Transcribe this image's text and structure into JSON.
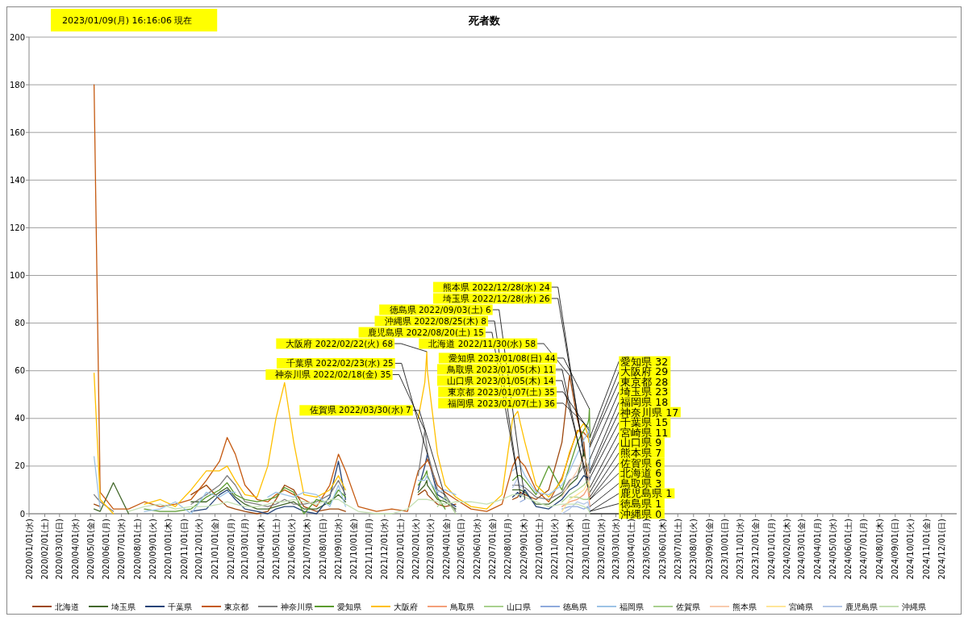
{
  "chart_data": {
    "type": "line",
    "title": "死者数",
    "annotations": [
      "2023/01/09(月) 16:16:06 現在",
      {
        "text": "大阪府 2022/02/22(火) 68",
        "x": "2022-02-22",
        "y": 68
      },
      {
        "text": "神奈川県 2022/02/18(金) 35",
        "x": "2022-02-18",
        "y": 35
      },
      {
        "text": "千葉県 2022/02/23(水) 25",
        "x": "2022-02-23",
        "y": 25
      },
      {
        "text": "佐賀県 2022/03/30(水) 7",
        "x": "2022-03-30",
        "y": 7
      },
      {
        "text": "鹿児島県 2022/08/20(土) 15",
        "x": "2022-08-20",
        "y": 15
      },
      {
        "text": "沖縄県 2022/08/25(木) 8",
        "x": "2022-08-25",
        "y": 8
      },
      {
        "text": "徳島県 2022/09/03(土) 6",
        "x": "2022-09-03",
        "y": 6
      },
      {
        "text": "北海道 2022/11/30(水) 58",
        "x": "2022-11-30",
        "y": 58
      },
      {
        "text": "愛知県 2023/01/08(日) 44",
        "x": "2023-01-08",
        "y": 44
      },
      {
        "text": "福岡県 2023/01/07(土) 36",
        "x": "2023-01-07",
        "y": 36
      },
      {
        "text": "東京都 2023/01/07(土) 35",
        "x": "2023-01-07",
        "y": 35
      },
      {
        "text": "埼玉県 2022/12/28(水) 26",
        "x": "2022-12-28",
        "y": 26
      },
      {
        "text": "熊本県 2022/12/28(水) 24",
        "x": "2022-12-28",
        "y": 24
      },
      {
        "text": "山口県 2023/01/05(木) 14",
        "x": "2023-01-05",
        "y": 14
      },
      {
        "text": "鳥取県 2023/01/05(木) 11",
        "x": "2023-01-05",
        "y": 11
      },
      {
        "text": "愛知県 32",
        "x": "2023-01-09",
        "y": 32
      },
      {
        "text": "大阪府 29",
        "x": "2023-01-09",
        "y": 29
      },
      {
        "text": "東京都 28",
        "x": "2023-01-09",
        "y": 28
      },
      {
        "text": "埼玉県 23",
        "x": "2023-01-09",
        "y": 23
      },
      {
        "text": "福岡県 18",
        "x": "2023-01-09",
        "y": 18
      },
      {
        "text": "神奈川県 17",
        "x": "2023-01-09",
        "y": 17
      },
      {
        "text": "千葉県 15",
        "x": "2023-01-09",
        "y": 15
      },
      {
        "text": "宮崎県 11",
        "x": "2023-01-09",
        "y": 11
      },
      {
        "text": "山口県 9",
        "x": "2023-01-09",
        "y": 9
      },
      {
        "text": "熊本県 7",
        "x": "2023-01-09",
        "y": 7
      },
      {
        "text": "佐賀県 6",
        "x": "2023-01-09",
        "y": 6
      },
      {
        "text": "北海道 6",
        "x": "2023-01-09",
        "y": 6
      },
      {
        "text": "鳥取県 3",
        "x": "2023-01-09",
        "y": 3
      },
      {
        "text": "鹿児島県 1",
        "x": "2023-01-09",
        "y": 1
      },
      {
        "text": "徳島県 1",
        "x": "2023-01-09",
        "y": 1
      },
      {
        "text": "沖縄県 0",
        "x": "2023-01-09",
        "y": 0
      }
    ],
    "x": [
      "2020-05-08",
      "2020-05-20",
      "2020-06-15",
      "2020-07-15",
      "2020-08-15",
      "2020-09-15",
      "2020-10-15",
      "2020-11-15",
      "2020-12-15",
      "2021-01-10",
      "2021-01-25",
      "2021-02-10",
      "2021-03-01",
      "2021-03-25",
      "2021-04-15",
      "2021-05-01",
      "2021-05-18",
      "2021-06-05",
      "2021-06-25",
      "2021-07-20",
      "2021-08-15",
      "2021-09-01",
      "2021-09-15",
      "2021-10-10",
      "2021-11-15",
      "2021-12-15",
      "2022-01-15",
      "2022-02-05",
      "2022-02-18",
      "2022-02-22",
      "2022-02-23",
      "2022-03-15",
      "2022-03-30",
      "2022-04-20",
      "2022-05-20",
      "2022-06-20",
      "2022-07-20",
      "2022-08-10",
      "2022-08-20",
      "2022-08-25",
      "2022-09-03",
      "2022-09-25",
      "2022-10-20",
      "2022-11-15",
      "2022-11-30",
      "2022-12-15",
      "2022-12-28",
      "2023-01-05",
      "2023-01-07",
      "2023-01-08",
      "2023-01-09"
    ],
    "series": [
      {
        "name": "北海道",
        "color": "#9e480e",
        "values": [
          4,
          3,
          null,
          null,
          null,
          null,
          null,
          8,
          12,
          6,
          3,
          2,
          1,
          0,
          1,
          6,
          12,
          10,
          3,
          1,
          2,
          2,
          1,
          null,
          null,
          null,
          null,
          8,
          10,
          9,
          8,
          4,
          3,
          4,
          null,
          null,
          null,
          6,
          7,
          9,
          8,
          6,
          10,
          30,
          58,
          40,
          30,
          12,
          10,
          8,
          6
        ]
      },
      {
        "name": "埼玉県",
        "color": "#43682b",
        "values": [
          2,
          1,
          13,
          0,
          null,
          null,
          null,
          5,
          5,
          9,
          11,
          7,
          4,
          2,
          2,
          3,
          4,
          5,
          2,
          2,
          5,
          8,
          5,
          null,
          null,
          null,
          null,
          9,
          12,
          14,
          12,
          6,
          5,
          2,
          null,
          null,
          null,
          10,
          10,
          10,
          9,
          4,
          4,
          8,
          12,
          15,
          26,
          18,
          20,
          22,
          23
        ]
      },
      {
        "name": "千葉県",
        "color": "#264478",
        "values": [
          null,
          null,
          null,
          null,
          null,
          null,
          null,
          1,
          2,
          8,
          10,
          6,
          2,
          1,
          0,
          2,
          3,
          3,
          1,
          0,
          7,
          22,
          6,
          null,
          null,
          null,
          null,
          10,
          20,
          24,
          25,
          8,
          6,
          3,
          null,
          null,
          null,
          7,
          9,
          7,
          10,
          3,
          2,
          6,
          10,
          12,
          16,
          15,
          16,
          14,
          15
        ]
      },
      {
        "name": "東京都",
        "color": "#c55a11",
        "values": [
          180,
          9,
          2,
          2,
          5,
          3,
          4,
          6,
          14,
          22,
          32,
          25,
          12,
          6,
          5,
          8,
          10,
          8,
          6,
          3,
          12,
          25,
          18,
          3,
          1,
          2,
          1,
          18,
          21,
          22,
          23,
          12,
          9,
          6,
          2,
          1,
          4,
          20,
          24,
          22,
          20,
          10,
          5,
          15,
          25,
          35,
          34,
          32,
          35,
          30,
          28
        ]
      },
      {
        "name": "神奈川県",
        "color": "#7f7f7f",
        "values": [
          8,
          5,
          1,
          null,
          null,
          null,
          null,
          4,
          8,
          12,
          16,
          12,
          5,
          4,
          3,
          4,
          6,
          4,
          4,
          5,
          8,
          14,
          8,
          null,
          null,
          null,
          null,
          16,
          35,
          28,
          26,
          10,
          8,
          1,
          null,
          null,
          null,
          12,
          12,
          12,
          11,
          7,
          6,
          9,
          14,
          16,
          20,
          19,
          21,
          18,
          17
        ]
      },
      {
        "name": "愛知県",
        "color": "#5b9b2e",
        "values": [
          null,
          null,
          null,
          null,
          2,
          1,
          1,
          2,
          7,
          10,
          13,
          8,
          6,
          5,
          6,
          7,
          11,
          9,
          0,
          6,
          4,
          10,
          7,
          null,
          null,
          null,
          null,
          12,
          16,
          18,
          16,
          7,
          2,
          null,
          null,
          null,
          null,
          14,
          16,
          16,
          14,
          8,
          20,
          10,
          20,
          30,
          35,
          38,
          40,
          44,
          32
        ]
      },
      {
        "name": "大阪府",
        "color": "#ffc000",
        "values": [
          59,
          6,
          0,
          null,
          4,
          6,
          3,
          10,
          18,
          18,
          20,
          14,
          8,
          7,
          20,
          40,
          55,
          30,
          8,
          7,
          10,
          16,
          10,
          null,
          null,
          null,
          null,
          40,
          55,
          68,
          60,
          25,
          12,
          7,
          3,
          2,
          8,
          40,
          43,
          38,
          30,
          12,
          7,
          14,
          26,
          34,
          38,
          33,
          30,
          31,
          29
        ]
      },
      {
        "name": "鳥取県",
        "color": "#f4a07a",
        "values": [
          null,
          null,
          null,
          null,
          null,
          null,
          null,
          null,
          null,
          null,
          null,
          null,
          null,
          null,
          null,
          null,
          null,
          null,
          null,
          null,
          null,
          null,
          null,
          null,
          null,
          null,
          null,
          null,
          null,
          null,
          null,
          null,
          null,
          null,
          null,
          null,
          null,
          null,
          null,
          null,
          null,
          null,
          null,
          3,
          5,
          6,
          8,
          11,
          6,
          5,
          3
        ]
      },
      {
        "name": "山口県",
        "color": "#a9d18e",
        "values": [
          null,
          null,
          null,
          null,
          null,
          null,
          null,
          null,
          null,
          null,
          null,
          null,
          null,
          null,
          null,
          null,
          null,
          null,
          null,
          null,
          null,
          null,
          null,
          null,
          null,
          null,
          null,
          null,
          null,
          null,
          null,
          null,
          null,
          null,
          null,
          null,
          null,
          null,
          null,
          null,
          null,
          null,
          null,
          5,
          8,
          10,
          12,
          14,
          9,
          10,
          9
        ]
      },
      {
        "name": "徳島県",
        "color": "#8faadc",
        "values": [
          null,
          null,
          null,
          null,
          null,
          null,
          null,
          null,
          null,
          null,
          null,
          null,
          null,
          null,
          null,
          null,
          null,
          null,
          null,
          null,
          null,
          null,
          null,
          null,
          null,
          null,
          null,
          null,
          null,
          null,
          null,
          null,
          null,
          null,
          null,
          null,
          null,
          null,
          null,
          5,
          6,
          null,
          null,
          2,
          3,
          3,
          2,
          3,
          2,
          2,
          1
        ]
      },
      {
        "name": "福岡県",
        "color": "#9dc3e6",
        "values": [
          24,
          2,
          null,
          null,
          1,
          2,
          5,
          0,
          9,
          7,
          9,
          9,
          null,
          null,
          7,
          9,
          8,
          7,
          9,
          8,
          3,
          12,
          3,
          null,
          null,
          null,
          null,
          14,
          14,
          16,
          15,
          9,
          10,
          8,
          null,
          null,
          null,
          18,
          20,
          20,
          16,
          9,
          8,
          12,
          18,
          25,
          31,
          34,
          36,
          29,
          18
        ]
      },
      {
        "name": "佐賀県",
        "color": "#a9d08e",
        "values": [
          null,
          null,
          null,
          null,
          null,
          null,
          null,
          null,
          null,
          null,
          null,
          null,
          null,
          null,
          null,
          null,
          null,
          null,
          null,
          null,
          null,
          null,
          null,
          null,
          null,
          null,
          null,
          null,
          null,
          null,
          null,
          3,
          7,
          0,
          null,
          null,
          null,
          null,
          null,
          null,
          null,
          null,
          null,
          null,
          7,
          7,
          6,
          6,
          7,
          6,
          6
        ]
      },
      {
        "name": "熊本県",
        "color": "#f8cbad",
        "values": [
          null,
          null,
          null,
          null,
          null,
          null,
          null,
          null,
          null,
          null,
          null,
          null,
          null,
          null,
          null,
          null,
          null,
          null,
          null,
          null,
          null,
          null,
          null,
          null,
          null,
          null,
          null,
          null,
          null,
          null,
          null,
          null,
          null,
          null,
          null,
          null,
          null,
          null,
          null,
          null,
          null,
          null,
          null,
          7,
          13,
          18,
          24,
          20,
          15,
          11,
          7
        ]
      },
      {
        "name": "宮崎県",
        "color": "#ffe699",
        "values": [
          null,
          null,
          null,
          null,
          null,
          null,
          null,
          null,
          null,
          null,
          null,
          null,
          null,
          null,
          null,
          null,
          null,
          null,
          null,
          null,
          null,
          null,
          null,
          null,
          null,
          null,
          null,
          null,
          null,
          null,
          null,
          null,
          null,
          null,
          null,
          null,
          null,
          null,
          null,
          null,
          null,
          null,
          null,
          1,
          6,
          8,
          10,
          13,
          12,
          12,
          11
        ]
      },
      {
        "name": "鹿児島県",
        "color": "#b4c7e7",
        "values": [
          null,
          null,
          null,
          null,
          null,
          null,
          null,
          null,
          null,
          null,
          null,
          null,
          null,
          null,
          null,
          null,
          null,
          null,
          null,
          null,
          null,
          null,
          null,
          null,
          null,
          null,
          null,
          null,
          null,
          null,
          null,
          null,
          null,
          null,
          null,
          null,
          null,
          11,
          15,
          11,
          12,
          null,
          null,
          0,
          2,
          5,
          4,
          5,
          3,
          3,
          1
        ]
      },
      {
        "name": "沖縄県",
        "color": "#c5e0b4",
        "values": [
          null,
          null,
          null,
          1,
          3,
          4,
          2,
          3,
          3,
          4,
          5,
          4,
          3,
          3,
          4,
          5,
          5,
          6,
          5,
          4,
          6,
          6,
          4,
          1,
          0,
          0,
          2,
          6,
          6,
          6,
          6,
          5,
          4,
          5,
          5,
          4,
          6,
          8,
          8,
          8,
          7,
          5,
          3,
          4,
          4,
          4,
          3,
          2,
          1,
          1,
          0
        ]
      }
    ],
    "xlim": [
      "2020-01-01",
      "2024-12-31"
    ],
    "xticks": [
      {
        "value": "2020-01-01",
        "label": "2020/01/01(水)"
      },
      {
        "value": "2020-02-01",
        "label": "2020/02/01(土)"
      },
      {
        "value": "2020-03-01",
        "label": "2020/03/01(日)"
      },
      {
        "value": "2020-04-01",
        "label": "2020/04/01(水)"
      },
      {
        "value": "2020-05-01",
        "label": "2020/05/01(金)"
      },
      {
        "value": "2020-06-01",
        "label": "2020/06/01(月)"
      },
      {
        "value": "2020-07-01",
        "label": "2020/07/01(水)"
      },
      {
        "value": "2020-08-01",
        "label": "2020/08/01(土)"
      },
      {
        "value": "2020-09-01",
        "label": "2020/09/01(火)"
      },
      {
        "value": "2020-10-01",
        "label": "2020/10/01(木)"
      },
      {
        "value": "2020-11-01",
        "label": "2020/11/01(日)"
      },
      {
        "value": "2020-12-01",
        "label": "2020/12/01(火)"
      },
      {
        "value": "2021-01-01",
        "label": "2021/01/01(金)"
      },
      {
        "value": "2021-02-01",
        "label": "2021/02/01(月)"
      },
      {
        "value": "2021-03-01",
        "label": "2021/03/01(月)"
      },
      {
        "value": "2021-04-01",
        "label": "2021/04/01(木)"
      },
      {
        "value": "2021-05-01",
        "label": "2021/05/01(土)"
      },
      {
        "value": "2021-06-01",
        "label": "2021/06/01(火)"
      },
      {
        "value": "2021-07-01",
        "label": "2021/07/01(木)"
      },
      {
        "value": "2021-08-01",
        "label": "2021/08/01(日)"
      },
      {
        "value": "2021-09-01",
        "label": "2021/09/01(水)"
      },
      {
        "value": "2021-10-01",
        "label": "2021/10/01(金)"
      },
      {
        "value": "2021-11-01",
        "label": "2021/11/01(月)"
      },
      {
        "value": "2021-12-01",
        "label": "2021/12/01(水)"
      },
      {
        "value": "2022-01-01",
        "label": "2022/01/01(土)"
      },
      {
        "value": "2022-02-01",
        "label": "2022/02/01(火)"
      },
      {
        "value": "2022-03-01",
        "label": "2022/03/01(火)"
      },
      {
        "value": "2022-04-01",
        "label": "2022/04/01(金)"
      },
      {
        "value": "2022-05-01",
        "label": "2022/05/01(日)"
      },
      {
        "value": "2022-06-01",
        "label": "2022/06/01(水)"
      },
      {
        "value": "2022-07-01",
        "label": "2022/07/01(金)"
      },
      {
        "value": "2022-08-01",
        "label": "2022/08/01(月)"
      },
      {
        "value": "2022-09-01",
        "label": "2022/09/01(木)"
      },
      {
        "value": "2022-10-01",
        "label": "2022/10/01(土)"
      },
      {
        "value": "2022-11-01",
        "label": "2022/11/01(火)"
      },
      {
        "value": "2022-12-01",
        "label": "2022/12/01(木)"
      },
      {
        "value": "2023-01-01",
        "label": "2023/01/01(日)"
      },
      {
        "value": "2023-02-01",
        "label": "2023/02/01(水)"
      },
      {
        "value": "2023-03-01",
        "label": "2023/03/01(水)"
      },
      {
        "value": "2023-04-01",
        "label": "2023/04/01(土)"
      },
      {
        "value": "2023-05-01",
        "label": "2023/05/01(月)"
      },
      {
        "value": "2023-06-01",
        "label": "2023/06/01(木)"
      },
      {
        "value": "2023-07-01",
        "label": "2023/07/01(土)"
      },
      {
        "value": "2023-08-01",
        "label": "2023/08/01(火)"
      },
      {
        "value": "2023-09-01",
        "label": "2023/09/01(金)"
      },
      {
        "value": "2023-10-01",
        "label": "2023/10/01(日)"
      },
      {
        "value": "2023-11-01",
        "label": "2023/11/01(水)"
      },
      {
        "value": "2023-12-01",
        "label": "2023/12/01(金)"
      },
      {
        "value": "2024-01-01",
        "label": "2024/01/01(月)"
      },
      {
        "value": "2024-02-01",
        "label": "2024/02/01(木)"
      },
      {
        "value": "2024-03-01",
        "label": "2024/03/01(金)"
      },
      {
        "value": "2024-04-01",
        "label": "2024/04/01(月)"
      },
      {
        "value": "2024-05-01",
        "label": "2024/05/01(水)"
      },
      {
        "value": "2024-06-01",
        "label": "2024/06/01(土)"
      },
      {
        "value": "2024-07-01",
        "label": "2024/07/01(月)"
      },
      {
        "value": "2024-08-01",
        "label": "2024/08/01(木)"
      },
      {
        "value": "2024-09-01",
        "label": "2024/09/01(日)"
      },
      {
        "value": "2024-10-01",
        "label": "2024/10/01(火)"
      },
      {
        "value": "2024-11-01",
        "label": "2024/11/01(金)"
      },
      {
        "value": "2024-12-01",
        "label": "2024/12/01(日)"
      }
    ],
    "ylim": [
      0,
      200
    ],
    "yticks": [
      0,
      20,
      40,
      60,
      80,
      100,
      120,
      140,
      160,
      180,
      200
    ],
    "grid": "y",
    "legend": "bottom",
    "line_style": "solid",
    "marker": "none"
  }
}
